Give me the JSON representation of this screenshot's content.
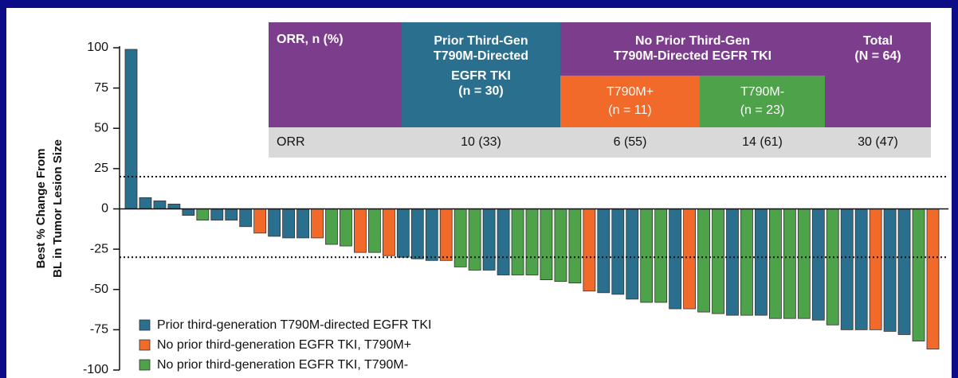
{
  "chart_data": {
    "type": "bar",
    "y_label": [
      "Best % Change From",
      "BL in Tumor Lesion Size"
    ],
    "ylim": [
      -100,
      100
    ],
    "yticks": [
      -100,
      -75,
      -50,
      -25,
      0,
      25,
      50,
      75,
      100
    ],
    "reference_lines": [
      20,
      -30
    ],
    "series": [
      {
        "name": "Prior third-generation T790M-directed EGFR TKI",
        "color": "#2b6f8e"
      },
      {
        "name": "No prior third-generation EGFR TKI, T790M+",
        "color": "#f26a2a"
      },
      {
        "name": "No prior third-generation EGFR TKI, T790M-",
        "color": "#4ea24a"
      }
    ],
    "values": [
      99,
      7,
      5,
      3,
      -4,
      -7,
      -7,
      -7,
      -11,
      -15,
      -17,
      -18,
      -18,
      -18,
      -22,
      -23,
      -27,
      -27,
      -29,
      -30,
      -31,
      -32,
      -32,
      -36,
      -38,
      -38,
      -41,
      -41,
      -41,
      -44,
      -45,
      -46,
      -51,
      -52,
      -53,
      -56,
      -58,
      -58,
      -62,
      -62,
      -64,
      -65,
      -66,
      -66,
      -66,
      -68,
      -68,
      -68,
      -69,
      -72,
      -75,
      -75,
      -75,
      -76,
      -78,
      -82,
      -87
    ],
    "groups": [
      0,
      0,
      0,
      0,
      0,
      2,
      0,
      0,
      0,
      1,
      0,
      0,
      0,
      1,
      2,
      2,
      1,
      2,
      1,
      0,
      0,
      0,
      1,
      2,
      2,
      0,
      0,
      2,
      2,
      2,
      2,
      2,
      1,
      0,
      0,
      0,
      2,
      2,
      0,
      1,
      2,
      2,
      0,
      2,
      0,
      2,
      2,
      2,
      0,
      2,
      0,
      0,
      1,
      0,
      0,
      2,
      1
    ]
  },
  "table": {
    "corner": "ORR, n (%)",
    "prior": {
      "title": [
        "Prior Third-Gen",
        "T790M-Directed",
        "EGFR TKI",
        "(n = 30)"
      ]
    },
    "no_prior": {
      "title": [
        "No Prior Third-Gen",
        "T790M-Directed EGFR TKI"
      ],
      "plus": [
        "T790M+",
        "(n = 11)"
      ],
      "minus": [
        "T790M-",
        "(n = 23)"
      ]
    },
    "total": [
      "Total",
      "(N = 64)"
    ],
    "row": [
      "ORR",
      "10 (33)",
      "6 (55)",
      "14 (61)",
      "30 (47)"
    ]
  }
}
